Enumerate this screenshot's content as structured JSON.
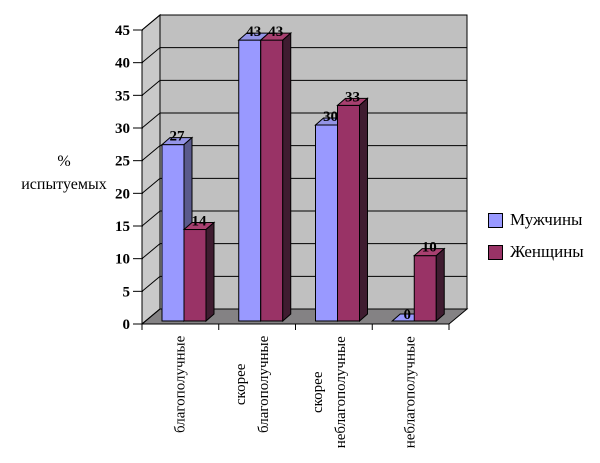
{
  "chart_data": {
    "type": "bar",
    "variant": "3d-column",
    "title": "",
    "categories": [
      "благополучные",
      "скорее благополучные",
      "скорее неблагополучные",
      "неблагополучные"
    ],
    "category_label_lines": [
      [
        "благополучные"
      ],
      [
        "скорее",
        "благополучные"
      ],
      [
        "скорее",
        "неблагополучные"
      ],
      [
        "неблагополучные"
      ]
    ],
    "series": [
      {
        "name": "Мужчины",
        "slug": "men",
        "values": [
          27,
          43,
          30,
          0
        ],
        "color": "#9999FF",
        "top_color": "#9494E6",
        "side_color": "#5A5A8C"
      },
      {
        "name": "Женщины",
        "slug": "women",
        "values": [
          14,
          43,
          33,
          10
        ],
        "color": "#993366",
        "top_color": "#A84070",
        "side_color": "#3F1C30"
      }
    ],
    "ylabel": "% испытуемых",
    "ylabel_lines": [
      "%",
      "испытуемых"
    ],
    "xlabel": "",
    "ylim": [
      0,
      45
    ],
    "ytick_step": 5,
    "yticks": [
      0,
      5,
      10,
      15,
      20,
      25,
      30,
      35,
      40,
      45
    ],
    "data_labels": true,
    "grid": true,
    "legend_position": "right",
    "colors": {
      "back_wall": "#C0C0C0",
      "left_wall": "#C9C9C9",
      "floor": "#848284",
      "gridline": "#000000",
      "axis": "#000000",
      "background": "#FFFFFF"
    }
  }
}
